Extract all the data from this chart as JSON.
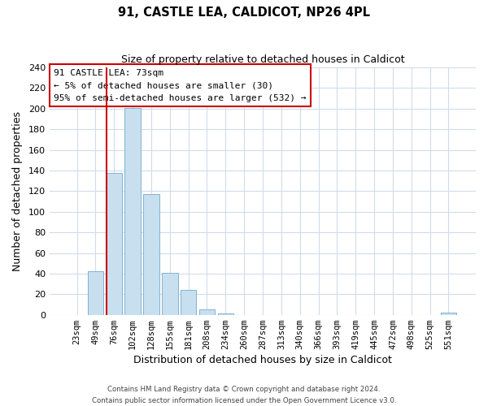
{
  "title": "91, CASTLE LEA, CALDICOT, NP26 4PL",
  "subtitle": "Size of property relative to detached houses in Caldicot",
  "xlabel": "Distribution of detached houses by size in Caldicot",
  "ylabel": "Number of detached properties",
  "bar_labels": [
    "23sqm",
    "49sqm",
    "76sqm",
    "102sqm",
    "128sqm",
    "155sqm",
    "181sqm",
    "208sqm",
    "234sqm",
    "260sqm",
    "287sqm",
    "313sqm",
    "340sqm",
    "366sqm",
    "393sqm",
    "419sqm",
    "445sqm",
    "472sqm",
    "498sqm",
    "525sqm",
    "551sqm"
  ],
  "bar_values": [
    0,
    42,
    138,
    201,
    117,
    41,
    24,
    5,
    1,
    0,
    0,
    0,
    0,
    0,
    0,
    0,
    0,
    0,
    0,
    0,
    2
  ],
  "bar_color": "#c8dff0",
  "bar_edge_color": "#7fb3d3",
  "highlight_line_color": "#cc0000",
  "red_line_bar_index": 2,
  "ylim": [
    0,
    240
  ],
  "yticks": [
    0,
    20,
    40,
    60,
    80,
    100,
    120,
    140,
    160,
    180,
    200,
    220,
    240
  ],
  "annotation_title": "91 CASTLE LEA: 73sqm",
  "annotation_line1": "← 5% of detached houses are smaller (30)",
  "annotation_line2": "95% of semi-detached houses are larger (532) →",
  "annotation_box_color": "#ffffff",
  "annotation_border_color": "#cc0000",
  "footer_line1": "Contains HM Land Registry data © Crown copyright and database right 2024.",
  "footer_line2": "Contains public sector information licensed under the Open Government Licence v3.0.",
  "background_color": "#ffffff",
  "grid_color": "#d0dce8"
}
